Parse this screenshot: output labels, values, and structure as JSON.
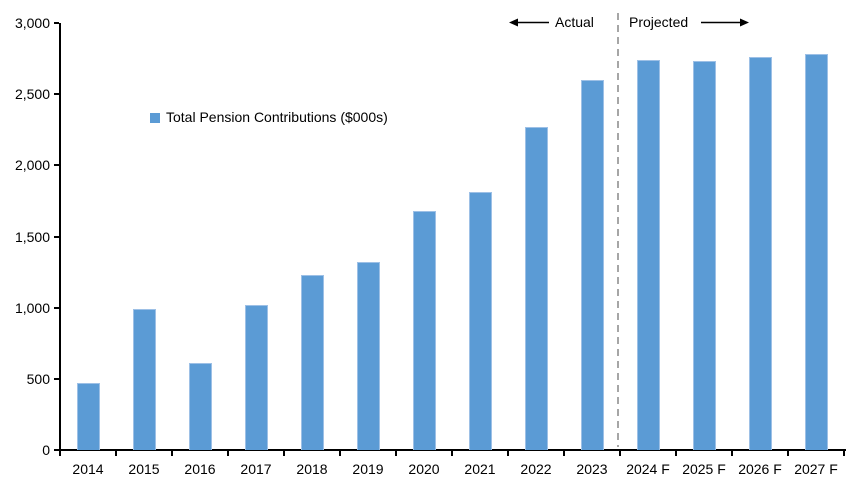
{
  "chart_data": {
    "type": "bar",
    "title": "",
    "categories": [
      "2014",
      "2015",
      "2016",
      "2017",
      "2018",
      "2019",
      "2020",
      "2021",
      "2022",
      "2023",
      "2024 F",
      "2025 F",
      "2026 F",
      "2027 F"
    ],
    "series": [
      {
        "name": "Total Pension Contributions ($000s)",
        "values": [
          470,
          990,
          610,
          1020,
          1230,
          1320,
          1680,
          1810,
          2270,
          2600,
          2740,
          2730,
          2760,
          2780
        ]
      }
    ],
    "ylim": [
      0,
      3000
    ],
    "yticks": [
      0,
      500,
      1000,
      1500,
      2000,
      2500,
      3000
    ],
    "ytick_labels": [
      "0",
      "500",
      "1,000",
      "1,500",
      "2,000",
      "2,500",
      "3,000"
    ],
    "xlabel": "",
    "ylabel": "",
    "grid": false,
    "legend_position": "inside-upper-left",
    "annotations": {
      "actual_label": "Actual",
      "projected_label": "Projected",
      "divider_between": [
        "2023",
        "2024 F"
      ]
    },
    "colors": {
      "bar": "#5B9BD5",
      "bar_edge": "#9DC0E6",
      "axis": "#000000",
      "divider": "#A6A6A6",
      "text": "#000000",
      "background": "#FFFFFF"
    }
  }
}
